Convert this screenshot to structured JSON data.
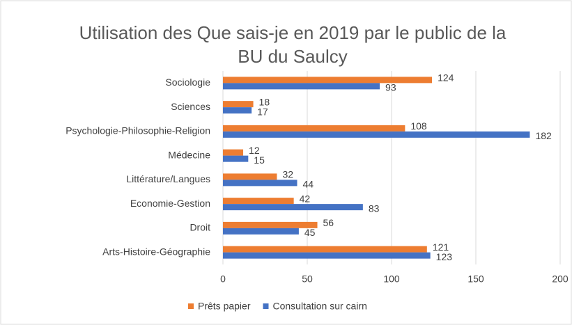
{
  "chart_data": {
    "type": "hbar",
    "title": "Utilisation des Que sais-je en 2019 par le public de la BU du Saulcy",
    "categories": [
      "Sociologie",
      "Sciences",
      "Psychologie-Philosophie-Religion",
      "Médecine",
      "Littérature/Langues",
      "Economie-Gestion",
      "Droit",
      "Arts-Histoire-Géographie"
    ],
    "series": [
      {
        "name": "Prêts papier",
        "color": "#ed7d31",
        "values": [
          124,
          18,
          108,
          12,
          32,
          42,
          56,
          121
        ]
      },
      {
        "name": "Consultation sur cairn",
        "color": "#4472c4",
        "values": [
          93,
          17,
          182,
          15,
          44,
          83,
          45,
          123
        ]
      }
    ],
    "xlim": [
      0,
      200
    ],
    "xticks": [
      0,
      50,
      100,
      150,
      200
    ],
    "grid": true,
    "legend": "bottom"
  }
}
